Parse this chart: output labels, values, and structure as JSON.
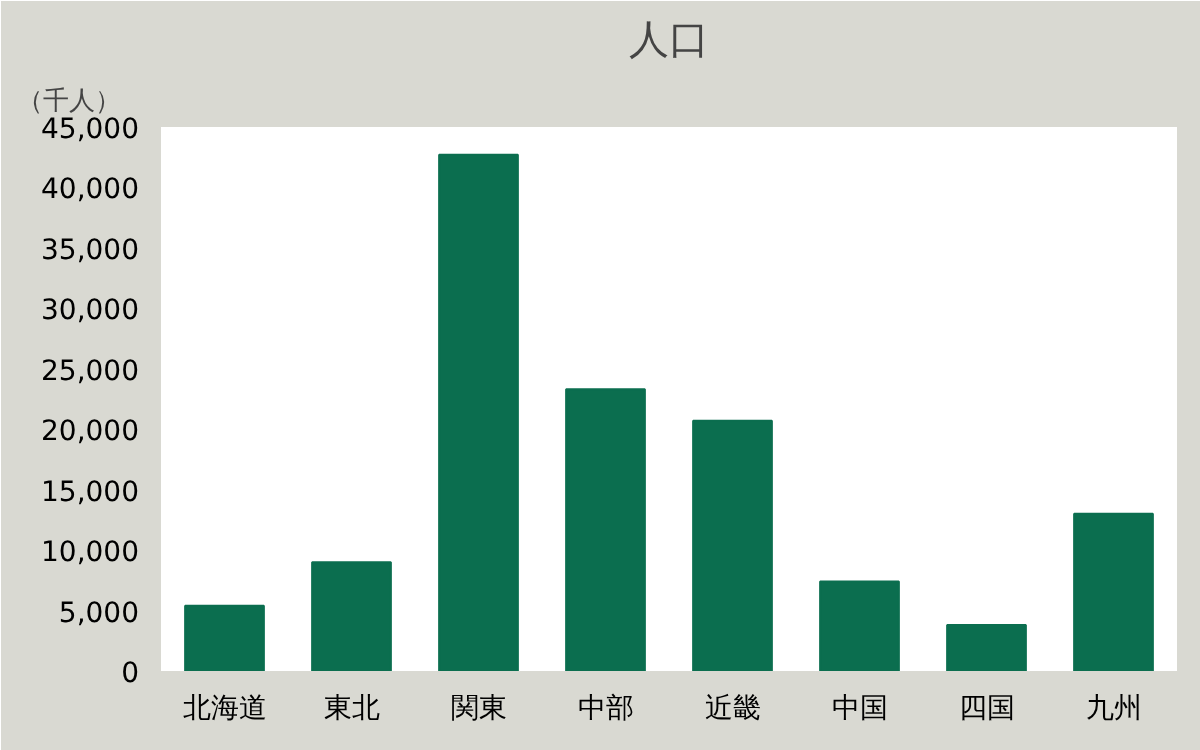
{
  "chart_data": {
    "type": "bar",
    "title": "人口",
    "ylabel": "（千人）",
    "categories": [
      "北海道",
      "東北",
      "関東",
      "中部",
      "近畿",
      "中国",
      "四国",
      "九州"
    ],
    "values": [
      5400,
      9000,
      42700,
      23300,
      20700,
      7400,
      3800,
      13000
    ],
    "color": "#0b6e4f",
    "ylim": [
      0,
      45000
    ],
    "yticks": [
      {
        "value": 0,
        "label": "0"
      },
      {
        "value": 5000,
        "label": "5,000"
      },
      {
        "value": 10000,
        "label": "10,000"
      },
      {
        "value": 15000,
        "label": "15,000"
      },
      {
        "value": 20000,
        "label": "20,000"
      },
      {
        "value": 25000,
        "label": "25,000"
      },
      {
        "value": 30000,
        "label": "30,000"
      },
      {
        "value": 35000,
        "label": "35,000"
      },
      {
        "value": 40000,
        "label": "40,000"
      },
      {
        "value": 45000,
        "label": "45,000"
      }
    ],
    "grid": false
  }
}
